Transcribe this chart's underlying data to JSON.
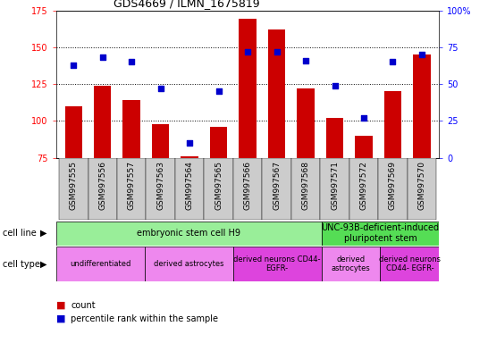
{
  "title": "GDS4669 / ILMN_1675819",
  "samples": [
    "GSM997555",
    "GSM997556",
    "GSM997557",
    "GSM997563",
    "GSM997564",
    "GSM997565",
    "GSM997566",
    "GSM997567",
    "GSM997568",
    "GSM997571",
    "GSM997572",
    "GSM997569",
    "GSM997570"
  ],
  "counts": [
    110,
    124,
    114,
    98,
    76,
    96,
    169,
    162,
    122,
    102,
    90,
    120,
    145
  ],
  "percentiles": [
    63,
    68,
    65,
    47,
    10,
    45,
    72,
    72,
    66,
    49,
    27,
    65,
    70
  ],
  "ylim_left": [
    75,
    175
  ],
  "ylim_right": [
    0,
    100
  ],
  "yticks_left": [
    75,
    100,
    125,
    150,
    175
  ],
  "yticks_right": [
    0,
    25,
    50,
    75,
    100
  ],
  "bar_color": "#cc0000",
  "dot_color": "#0000cc",
  "cell_line_groups": [
    {
      "label": "embryonic stem cell H9",
      "start": 0,
      "end": 9,
      "color": "#99ee99"
    },
    {
      "label": "UNC-93B-deficient-induced\npluripotent stem",
      "start": 9,
      "end": 13,
      "color": "#55dd55"
    }
  ],
  "cell_type_groups": [
    {
      "label": "undifferentiated",
      "start": 0,
      "end": 3,
      "color": "#ee88ee"
    },
    {
      "label": "derived astrocytes",
      "start": 3,
      "end": 6,
      "color": "#ee88ee"
    },
    {
      "label": "derived neurons CD44-\nEGFR-",
      "start": 6,
      "end": 9,
      "color": "#dd44dd"
    },
    {
      "label": "derived\nastrocytes",
      "start": 9,
      "end": 11,
      "color": "#ee88ee"
    },
    {
      "label": "derived neurons\nCD44- EGFR-",
      "start": 11,
      "end": 13,
      "color": "#dd44dd"
    }
  ],
  "legend_count_color": "#cc0000",
  "legend_percentile_color": "#0000cc",
  "bg_color": "#ffffff",
  "plot_bg": "#ffffff",
  "xtick_bg": "#cccccc",
  "label_fontsize": 6.5,
  "tick_fontsize": 7
}
